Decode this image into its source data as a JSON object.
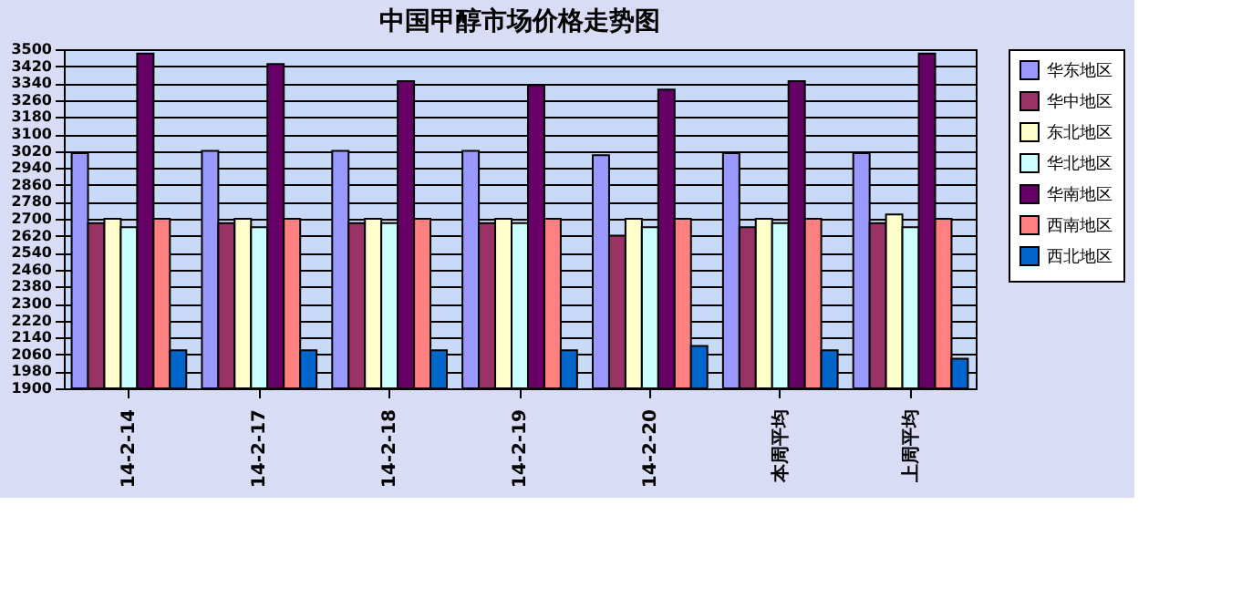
{
  "chart_data": {
    "type": "bar",
    "title": "中国甲醇市场价格走势图",
    "categories": [
      "14-2-14",
      "14-2-17",
      "14-2-18",
      "14-2-19",
      "14-2-20",
      "本周平均",
      "上周平均"
    ],
    "series": [
      {
        "name": "华东地区",
        "color": "#9999ff",
        "values": [
          3010,
          3020,
          3020,
          3020,
          3000,
          3010,
          3010
        ]
      },
      {
        "name": "华中地区",
        "color": "#993366",
        "values": [
          2680,
          2680,
          2680,
          2680,
          2620,
          2660,
          2680
        ]
      },
      {
        "name": "东北地区",
        "color": "#ffffcc",
        "values": [
          2700,
          2700,
          2700,
          2700,
          2700,
          2700,
          2720
        ]
      },
      {
        "name": "华北地区",
        "color": "#ccffff",
        "values": [
          2660,
          2660,
          2680,
          2680,
          2660,
          2680,
          2660
        ]
      },
      {
        "name": "华南地区",
        "color": "#660066",
        "values": [
          3480,
          3430,
          3350,
          3330,
          3310,
          3350,
          3480
        ]
      },
      {
        "name": "西南地区",
        "color": "#ff8080",
        "values": [
          2700,
          2700,
          2700,
          2700,
          2700,
          2700,
          2700
        ]
      },
      {
        "name": "西北地区",
        "color": "#0066cc",
        "values": [
          2080,
          2080,
          2080,
          2080,
          2100,
          2080,
          2040
        ]
      }
    ],
    "ylim": [
      1900,
      3500
    ],
    "yticks": [
      1900,
      1980,
      2060,
      2140,
      2220,
      2300,
      2380,
      2460,
      2540,
      2620,
      2700,
      2780,
      2860,
      2940,
      3020,
      3100,
      3180,
      3260,
      3340,
      3420,
      3500
    ],
    "grid": "y",
    "legend": "right"
  }
}
